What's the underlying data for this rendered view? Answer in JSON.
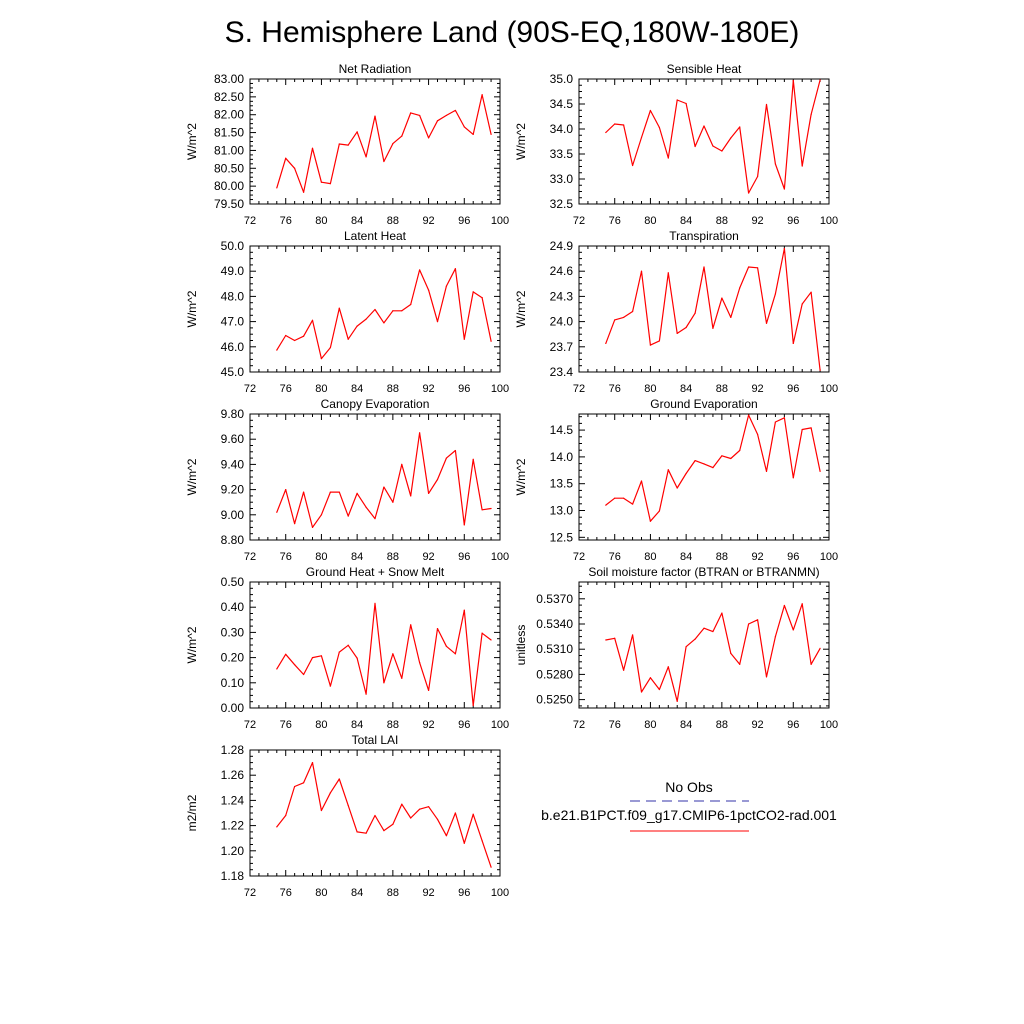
{
  "title": "S. Hemisphere Land (90S-EQ,180W-180E)",
  "colors": {
    "model": "#ff0000",
    "obs": "#3333aa",
    "axis": "#000000"
  },
  "legend": {
    "obs_label": "No Obs",
    "model_label": "b.e21.B1PCT.f09_g17.CMIP6-1pctCO2-rad.001"
  },
  "chart_data": [
    {
      "type": "line",
      "title": "Net Radiation",
      "ylabel": "W/m^2",
      "xlim": [
        72,
        100
      ],
      "ylim": [
        79.5,
        83.0
      ],
      "xticks": [
        "72",
        "76",
        "80",
        "84",
        "88",
        "92",
        "96",
        "100"
      ],
      "yticks": [
        "79.50",
        "80.00",
        "80.50",
        "81.00",
        "81.50",
        "82.00",
        "82.50",
        "83.00"
      ],
      "x": [
        75,
        76,
        77,
        78,
        79,
        80,
        81,
        82,
        83,
        84,
        85,
        86,
        87,
        88,
        89,
        90,
        91,
        92,
        93,
        94,
        95,
        96,
        97,
        98,
        99
      ],
      "series": [
        {
          "values": [
            79.95,
            80.78,
            80.5,
            79.83,
            81.06,
            80.11,
            80.07,
            81.18,
            81.15,
            81.52,
            80.82,
            81.96,
            80.69,
            81.19,
            81.4,
            82.05,
            81.98,
            81.35,
            81.83,
            81.98,
            82.12,
            81.66,
            81.45,
            82.56,
            81.45
          ]
        }
      ]
    },
    {
      "type": "line",
      "title": "Sensible Heat",
      "ylabel": "W/m^2",
      "xlim": [
        72,
        100
      ],
      "ylim": [
        32.5,
        35.0
      ],
      "xticks": [
        "72",
        "76",
        "80",
        "84",
        "88",
        "92",
        "96",
        "100"
      ],
      "yticks": [
        "32.5",
        "33.0",
        "33.5",
        "34.0",
        "34.5",
        "35.0"
      ],
      "x": [
        75,
        76,
        77,
        78,
        79,
        80,
        81,
        82,
        83,
        84,
        85,
        86,
        87,
        88,
        89,
        90,
        91,
        92,
        93,
        94,
        95,
        96,
        97,
        98,
        99
      ],
      "series": [
        {
          "values": [
            33.93,
            34.1,
            34.08,
            33.27,
            33.83,
            34.37,
            34.03,
            33.42,
            34.58,
            34.51,
            33.65,
            34.06,
            33.66,
            33.56,
            33.82,
            34.04,
            32.72,
            33.05,
            34.49,
            33.3,
            32.8,
            34.97,
            33.26,
            34.29,
            34.98
          ]
        }
      ]
    },
    {
      "type": "line",
      "title": "Latent Heat",
      "ylabel": "W/m^2",
      "xlim": [
        72,
        100
      ],
      "ylim": [
        45.0,
        50.0
      ],
      "xticks": [
        "72",
        "76",
        "80",
        "84",
        "88",
        "92",
        "96",
        "100"
      ],
      "yticks": [
        "45.0",
        "46.0",
        "47.0",
        "48.0",
        "49.0",
        "50.0"
      ],
      "x": [
        75,
        76,
        77,
        78,
        79,
        80,
        81,
        82,
        83,
        84,
        85,
        86,
        87,
        88,
        89,
        90,
        91,
        92,
        93,
        94,
        95,
        96,
        97,
        98,
        99
      ],
      "series": [
        {
          "values": [
            45.87,
            46.45,
            46.25,
            46.42,
            47.05,
            45.53,
            45.97,
            47.53,
            46.3,
            46.82,
            47.1,
            47.48,
            46.95,
            47.43,
            47.43,
            47.68,
            49.05,
            48.25,
            47.0,
            48.41,
            49.1,
            46.3,
            48.18,
            47.95,
            46.22
          ]
        }
      ]
    },
    {
      "type": "line",
      "title": "Transpiration",
      "ylabel": "W/m^2",
      "xlim": [
        72,
        100
      ],
      "ylim": [
        23.4,
        24.9
      ],
      "xticks": [
        "72",
        "76",
        "80",
        "84",
        "88",
        "92",
        "96",
        "100"
      ],
      "yticks": [
        "23.4",
        "23.7",
        "24.0",
        "24.3",
        "24.6",
        "24.9"
      ],
      "x": [
        75,
        76,
        77,
        78,
        79,
        80,
        81,
        82,
        83,
        84,
        85,
        86,
        87,
        88,
        89,
        90,
        91,
        92,
        93,
        94,
        95,
        96,
        97,
        98,
        99
      ],
      "series": [
        {
          "values": [
            23.74,
            24.02,
            24.05,
            24.12,
            24.6,
            23.72,
            23.77,
            24.58,
            23.86,
            23.93,
            24.1,
            24.65,
            23.92,
            24.28,
            24.05,
            24.4,
            24.65,
            24.64,
            23.98,
            24.33,
            24.87,
            23.74,
            24.21,
            24.35,
            23.42
          ]
        }
      ]
    },
    {
      "type": "line",
      "title": "Canopy Evaporation",
      "ylabel": "W/m^2",
      "xlim": [
        72,
        100
      ],
      "ylim": [
        8.8,
        9.8
      ],
      "xticks": [
        "72",
        "76",
        "80",
        "84",
        "88",
        "92",
        "96",
        "100"
      ],
      "yticks": [
        "8.80",
        "9.00",
        "9.20",
        "9.40",
        "9.60",
        "9.80"
      ],
      "x": [
        75,
        76,
        77,
        78,
        79,
        80,
        81,
        82,
        83,
        84,
        85,
        86,
        87,
        88,
        89,
        90,
        91,
        92,
        93,
        94,
        95,
        96,
        97,
        98,
        99
      ],
      "series": [
        {
          "values": [
            9.02,
            9.2,
            8.93,
            9.18,
            8.9,
            9.0,
            9.18,
            9.18,
            8.99,
            9.17,
            9.06,
            8.97,
            9.22,
            9.1,
            9.4,
            9.15,
            9.65,
            9.17,
            9.28,
            9.45,
            9.51,
            8.92,
            9.44,
            9.04,
            9.05
          ]
        }
      ]
    },
    {
      "type": "line",
      "title": "Ground Evaporation",
      "ylabel": "W/m^2",
      "xlim": [
        72,
        100
      ],
      "ylim": [
        12.45,
        14.8
      ],
      "xticks": [
        "72",
        "76",
        "80",
        "84",
        "88",
        "92",
        "96",
        "100"
      ],
      "yticks": [
        "12.5",
        "13.0",
        "13.5",
        "14.0",
        "14.5"
      ],
      "x": [
        75,
        76,
        77,
        78,
        79,
        80,
        81,
        82,
        83,
        84,
        85,
        86,
        87,
        88,
        89,
        90,
        91,
        92,
        93,
        94,
        95,
        96,
        97,
        98,
        99
      ],
      "series": [
        {
          "values": [
            13.1,
            13.23,
            13.23,
            13.12,
            13.55,
            12.8,
            12.99,
            13.76,
            13.42,
            13.69,
            13.93,
            13.87,
            13.8,
            14.02,
            13.97,
            14.12,
            14.78,
            14.42,
            13.73,
            14.65,
            14.73,
            13.61,
            14.51,
            14.54,
            13.73
          ]
        }
      ]
    },
    {
      "type": "line",
      "title": "Ground Heat + Snow Melt",
      "ylabel": "W/m^2",
      "xlim": [
        72,
        100
      ],
      "ylim": [
        0.0,
        0.5
      ],
      "xticks": [
        "72",
        "76",
        "80",
        "84",
        "88",
        "92",
        "96",
        "100"
      ],
      "yticks": [
        "0.00",
        "0.10",
        "0.20",
        "0.30",
        "0.40",
        "0.50"
      ],
      "x": [
        75,
        76,
        77,
        78,
        79,
        80,
        81,
        82,
        83,
        84,
        85,
        86,
        87,
        88,
        89,
        90,
        91,
        92,
        93,
        94,
        95,
        96,
        97,
        98,
        99
      ],
      "series": [
        {
          "values": [
            0.155,
            0.213,
            0.172,
            0.133,
            0.2,
            0.207,
            0.087,
            0.222,
            0.249,
            0.198,
            0.055,
            0.415,
            0.1,
            0.215,
            0.118,
            0.33,
            0.18,
            0.07,
            0.315,
            0.245,
            0.215,
            0.388,
            0.01,
            0.297,
            0.27
          ]
        }
      ]
    },
    {
      "type": "line",
      "title": "Soil moisture factor (BTRAN or BTRANMN)",
      "ylabel": "unitless",
      "xlim": [
        72,
        100
      ],
      "ylim": [
        0.524,
        0.539
      ],
      "xticks": [
        "72",
        "76",
        "80",
        "84",
        "88",
        "92",
        "96",
        "100"
      ],
      "yticks": [
        "0.5250",
        "0.5280",
        "0.5310",
        "0.5340",
        "0.5370"
      ],
      "x": [
        75,
        76,
        77,
        78,
        79,
        80,
        81,
        82,
        83,
        84,
        85,
        86,
        87,
        88,
        89,
        90,
        91,
        92,
        93,
        94,
        95,
        96,
        97,
        98,
        99
      ],
      "series": [
        {
          "values": [
            0.5321,
            0.5323,
            0.5285,
            0.5327,
            0.5259,
            0.5276,
            0.5262,
            0.5289,
            0.5248,
            0.5313,
            0.5322,
            0.5335,
            0.5331,
            0.5353,
            0.5305,
            0.5292,
            0.534,
            0.5345,
            0.5277,
            0.5325,
            0.5362,
            0.5333,
            0.5364,
            0.5292,
            0.5311
          ]
        }
      ]
    },
    {
      "type": "line",
      "title": "Total LAI",
      "ylabel": "m2/m2",
      "xlim": [
        72,
        100
      ],
      "ylim": [
        1.18,
        1.28
      ],
      "xticks": [
        "72",
        "76",
        "80",
        "84",
        "88",
        "92",
        "96",
        "100"
      ],
      "yticks": [
        "1.18",
        "1.20",
        "1.22",
        "1.24",
        "1.26",
        "1.28"
      ],
      "x": [
        75,
        76,
        77,
        78,
        79,
        80,
        81,
        82,
        83,
        84,
        85,
        86,
        87,
        88,
        89,
        90,
        91,
        92,
        93,
        94,
        95,
        96,
        97,
        98,
        99
      ],
      "series": [
        {
          "values": [
            1.219,
            1.228,
            1.251,
            1.254,
            1.27,
            1.232,
            1.246,
            1.257,
            1.236,
            1.215,
            1.214,
            1.228,
            1.216,
            1.221,
            1.237,
            1.226,
            1.233,
            1.235,
            1.225,
            1.212,
            1.23,
            1.206,
            1.229,
            1.208,
            1.187
          ]
        }
      ]
    }
  ]
}
